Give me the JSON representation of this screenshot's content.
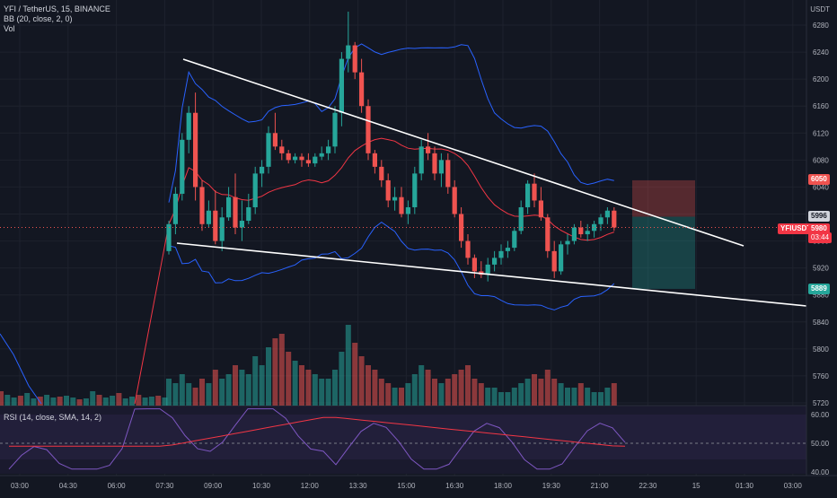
{
  "legend": {
    "symbol_line": "YFI / TetherUS, 15, BINANCE",
    "bb_line": "BB (20, close, 2, 0)",
    "vol_line": "Vol",
    "rsi_line": "RSI (14, close, SMA, 14, 2)"
  },
  "price_axis": {
    "currency": "USDT",
    "ticks": [
      "6280",
      "6240",
      "6200",
      "6160",
      "6120",
      "6080",
      "6040",
      "6000",
      "5960",
      "5920",
      "5880",
      "5840",
      "5800",
      "5760",
      "5720"
    ]
  },
  "rsi_axis": {
    "ticks": [
      "60.00",
      "50.00",
      "40.00"
    ]
  },
  "time_axis": {
    "ticks": [
      "03:00",
      "04:30",
      "06:00",
      "07:30",
      "09:00",
      "10:30",
      "12:00",
      "13:30",
      "15:00",
      "16:30",
      "18:00",
      "19:30",
      "21:00",
      "22:30",
      "15",
      "01:30",
      "03:00"
    ]
  },
  "price_tags": {
    "target": "6050",
    "entry": "5996",
    "current_symbol": "YFIUSDT",
    "current_price": "5980",
    "countdown": "03:44",
    "stop": "5889"
  },
  "colors": {
    "up": "#26a69a",
    "down": "#ef5350",
    "bb": "#2962ff",
    "basis": "#f23645",
    "rsi": "#7e57c2",
    "rsi_ma": "#f23645",
    "trendline": "#ffffff"
  },
  "chart_data": {
    "type": "candlestick",
    "price_range": [
      5715,
      6300
    ],
    "candles_ohlc": [
      [
        5945,
        5990,
        5940,
        5985
      ],
      [
        5985,
        6040,
        5970,
        6030
      ],
      [
        6030,
        6120,
        6020,
        6110
      ],
      [
        6110,
        6160,
        6090,
        6150
      ],
      [
        6150,
        6180,
        6020,
        6040
      ],
      [
        6040,
        6050,
        5975,
        5985
      ],
      [
        5985,
        6020,
        5980,
        6005
      ],
      [
        6005,
        6035,
        5955,
        5960
      ],
      [
        5960,
        6010,
        5945,
        5995
      ],
      [
        5995,
        6040,
        5990,
        6025
      ],
      [
        6025,
        6060,
        5970,
        5980
      ],
      [
        5980,
        6020,
        5960,
        5990
      ],
      [
        5990,
        6030,
        5985,
        6010
      ],
      [
        6010,
        6070,
        6000,
        6060
      ],
      [
        6060,
        6080,
        6040,
        6070
      ],
      [
        6070,
        6130,
        6060,
        6120
      ],
      [
        6120,
        6150,
        6095,
        6100
      ],
      [
        6100,
        6110,
        6080,
        6090
      ],
      [
        6090,
        6095,
        6075,
        6080
      ],
      [
        6080,
        6090,
        6075,
        6085
      ],
      [
        6085,
        6090,
        6070,
        6080
      ],
      [
        6080,
        6090,
        6070,
        6075
      ],
      [
        6075,
        6090,
        6070,
        6085
      ],
      [
        6085,
        6100,
        6080,
        6090
      ],
      [
        6090,
        6110,
        6080,
        6100
      ],
      [
        6100,
        6160,
        6090,
        6150
      ],
      [
        6150,
        6240,
        6130,
        6230
      ],
      [
        6230,
        6300,
        6210,
        6250
      ],
      [
        6250,
        6255,
        6200,
        6210
      ],
      [
        6210,
        6230,
        6150,
        6160
      ],
      [
        6160,
        6170,
        6080,
        6090
      ],
      [
        6090,
        6095,
        6060,
        6070
      ],
      [
        6070,
        6080,
        6040,
        6050
      ],
      [
        6050,
        6060,
        6010,
        6020
      ],
      [
        6020,
        6040,
        6005,
        6025
      ],
      [
        6025,
        6040,
        5995,
        6000
      ],
      [
        6000,
        6020,
        5985,
        6010
      ],
      [
        6010,
        6070,
        6000,
        6060
      ],
      [
        6060,
        6110,
        6050,
        6100
      ],
      [
        6100,
        6120,
        6080,
        6090
      ],
      [
        6090,
        6100,
        6050,
        6060
      ],
      [
        6060,
        6090,
        6040,
        6080
      ],
      [
        6080,
        6090,
        6030,
        6040
      ],
      [
        6040,
        6050,
        5995,
        6000
      ],
      [
        6000,
        6010,
        5950,
        5960
      ],
      [
        5960,
        5970,
        5925,
        5935
      ],
      [
        5935,
        5940,
        5905,
        5915
      ],
      [
        5915,
        5930,
        5905,
        5910
      ],
      [
        5910,
        5935,
        5900,
        5925
      ],
      [
        5925,
        5945,
        5915,
        5935
      ],
      [
        5935,
        5955,
        5925,
        5945
      ],
      [
        5945,
        5960,
        5935,
        5950
      ],
      [
        5950,
        5980,
        5945,
        5975
      ],
      [
        5975,
        6020,
        5970,
        6010
      ],
      [
        6010,
        6050,
        6000,
        6045
      ],
      [
        6045,
        6060,
        6010,
        6020
      ],
      [
        6020,
        6040,
        5990,
        5995
      ],
      [
        5995,
        6000,
        5935,
        5945
      ],
      [
        5945,
        5960,
        5905,
        5915
      ],
      [
        5915,
        5960,
        5910,
        5955
      ],
      [
        5955,
        5970,
        5940,
        5960
      ],
      [
        5960,
        5985,
        5955,
        5980
      ],
      [
        5980,
        5990,
        5965,
        5970
      ],
      [
        5970,
        5985,
        5960,
        5975
      ],
      [
        5975,
        5990,
        5965,
        5985
      ],
      [
        5985,
        6000,
        5975,
        5995
      ],
      [
        5995,
        6010,
        5985,
        6005
      ],
      [
        6005,
        6010,
        5975,
        5980
      ]
    ]
  }
}
